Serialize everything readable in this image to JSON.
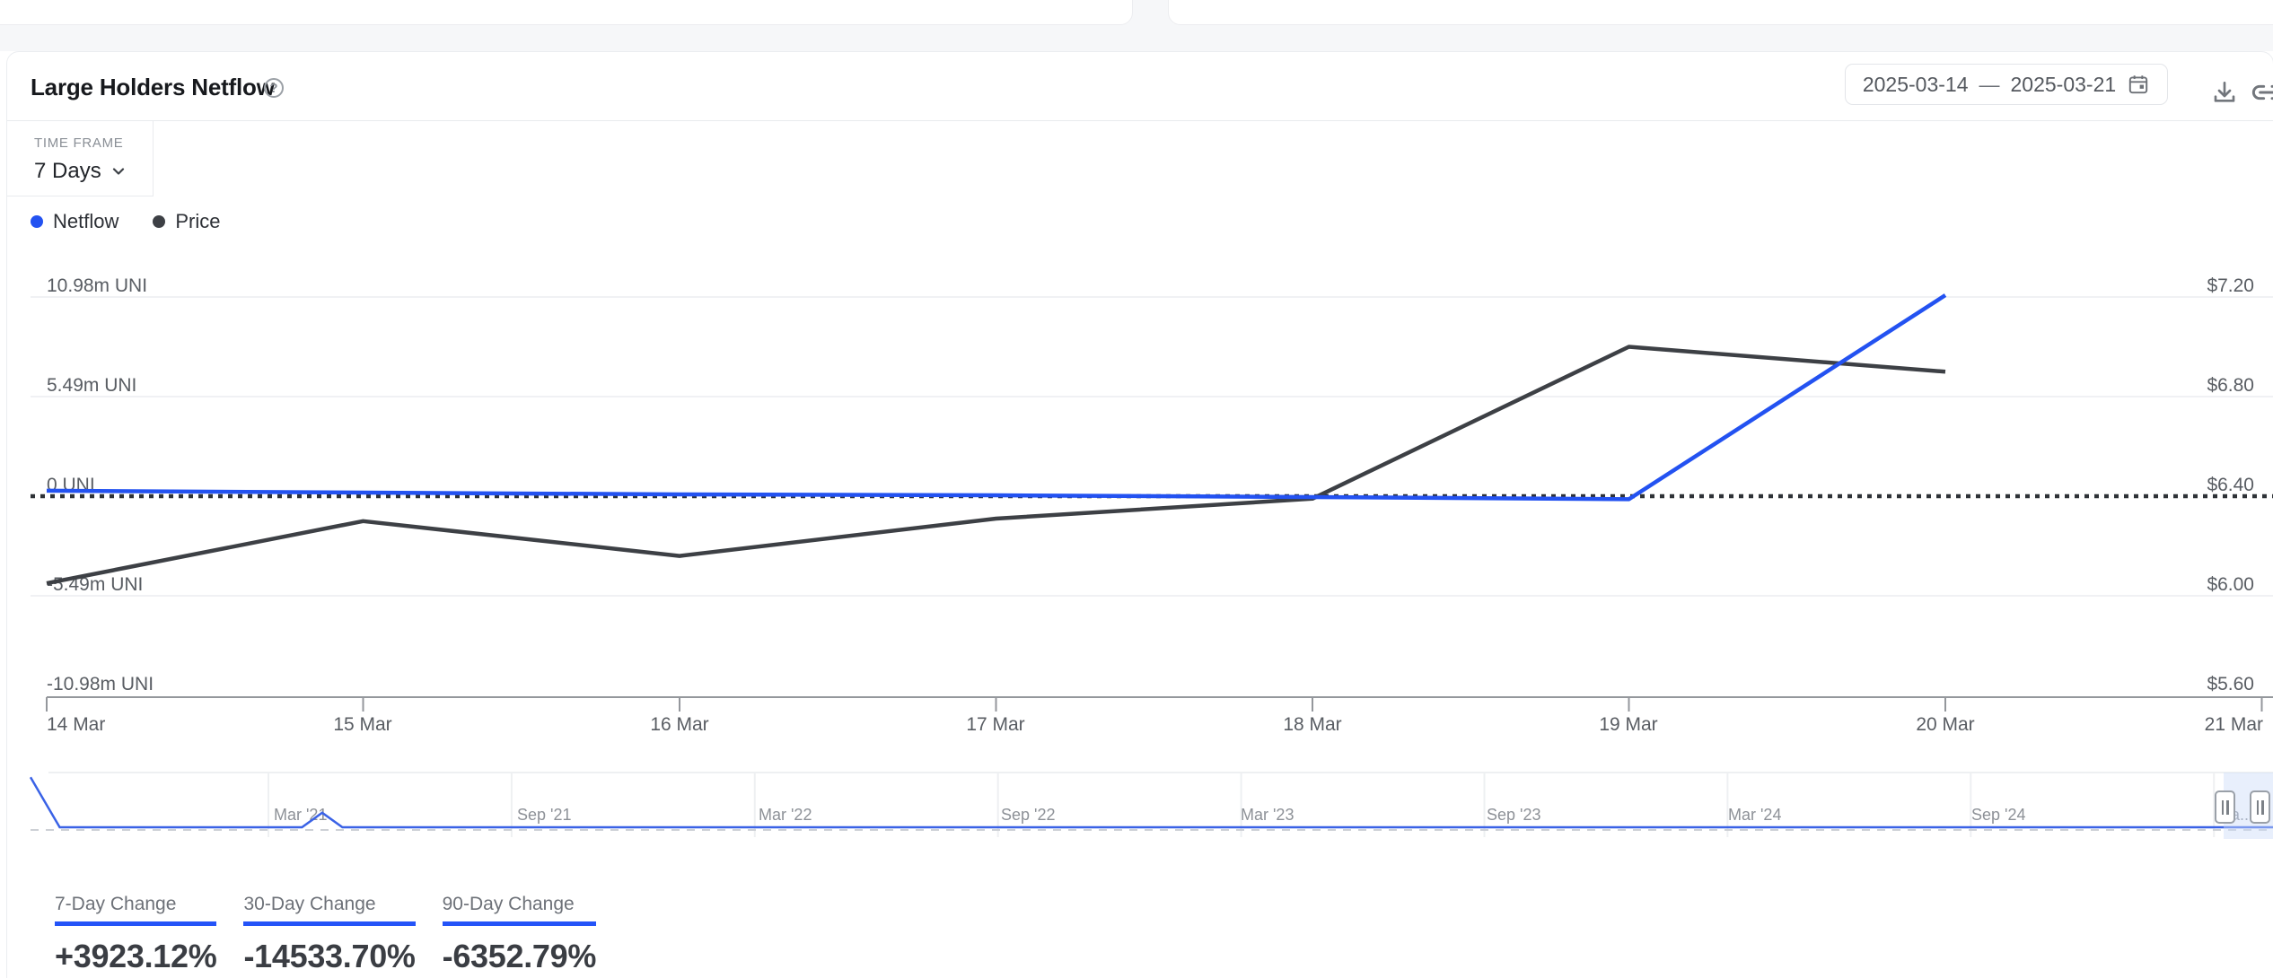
{
  "header": {
    "title": "Large Holders Netflow",
    "date_range": {
      "start": "2025-03-14",
      "separator": "—",
      "end": "2025-03-21"
    }
  },
  "timeframe": {
    "label": "TIME FRAME",
    "value": "7 Days"
  },
  "legend": [
    {
      "name": "Netflow",
      "color": "#2352f1"
    },
    {
      "name": "Price",
      "color": "#3d4045"
    }
  ],
  "icons": {
    "help_glyph": "?",
    "help": "circle-question",
    "calendar": "calendar",
    "download": "download-tray-arrow",
    "link": "chain-link",
    "chevron_down": "chevron-down",
    "brush_handle": "grip-vertical"
  },
  "chart_data": {
    "type": "line",
    "title": "Large Holders Netflow",
    "x_labels": [
      "14 Mar",
      "15 Mar",
      "16 Mar",
      "17 Mar",
      "18 Mar",
      "19 Mar",
      "20 Mar",
      "21 Mar"
    ],
    "y_left": {
      "unit": "m UNI",
      "ticks": [
        "10.98m UNI",
        "5.49m UNI",
        "0 UNI",
        "-5.49m UNI",
        "-10.98m UNI"
      ],
      "values": [
        10.98,
        5.49,
        0,
        -5.49,
        -10.98
      ],
      "range": [
        -10.98,
        10.98
      ]
    },
    "y_right": {
      "unit": "USD",
      "ticks": [
        "$7.20",
        "$6.80",
        "$6.40",
        "$6.00",
        "$5.60"
      ],
      "values": [
        7.2,
        6.8,
        6.4,
        6.0,
        5.6
      ],
      "range": [
        5.6,
        7.2
      ]
    },
    "zero_line": {
      "style": "dotted",
      "left_value": 0,
      "right_value": 6.4
    },
    "grid": "horizontal",
    "legend_position": "top-left",
    "series": [
      {
        "name": "Netflow",
        "axis": "left",
        "color": "#2352f1",
        "x": [
          "14 Mar",
          "15 Mar",
          "16 Mar",
          "17 Mar",
          "18 Mar",
          "19 Mar",
          "20 Mar"
        ],
        "values": [
          0.3,
          0.2,
          0.1,
          0.05,
          -0.05,
          -0.17,
          11.08
        ]
      },
      {
        "name": "Price",
        "axis": "right",
        "color": "#3d4045",
        "x": [
          "14 Mar",
          "15 Mar",
          "16 Mar",
          "17 Mar",
          "18 Mar",
          "19 Mar",
          "20 Mar"
        ],
        "values": [
          6.05,
          6.3,
          6.16,
          6.31,
          6.39,
          7.0,
          6.9
        ]
      }
    ],
    "mini": {
      "labels": [
        "Mar '21",
        "Sep '21",
        "Mar '22",
        "Sep '22",
        "Mar '23",
        "Sep '23",
        "Mar '24",
        "Sep '24",
        "Ma..."
      ],
      "color": "#3a62e6",
      "points_frac": [
        [
          0,
          0.04
        ],
        [
          0.013,
          1
        ],
        [
          0.121,
          1
        ],
        [
          0.13,
          0.72
        ],
        [
          0.139,
          1
        ],
        [
          0.55,
          1
        ],
        [
          1,
          1
        ]
      ]
    }
  },
  "stats": [
    {
      "label": "7-Day Change",
      "value": "+3923.12%"
    },
    {
      "label": "30-Day Change",
      "value": "-14533.70%"
    },
    {
      "label": "90-Day Change",
      "value": "-6352.79%"
    }
  ]
}
